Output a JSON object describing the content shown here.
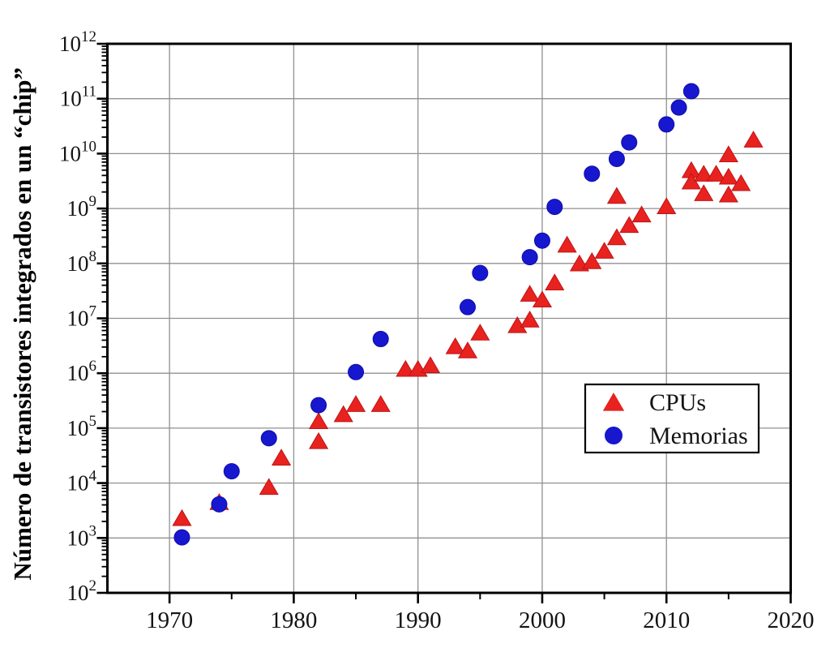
{
  "figure": {
    "kind": "scatter plot, log y-scale, Moore's law style"
  },
  "chart_data": {
    "type": "scatter",
    "title": "",
    "xlabel": "",
    "ylabel": "Número de transistores integrados en un “chip”",
    "x_axis": {
      "min": 1965,
      "max": 2020,
      "major_ticks": [
        1970,
        1980,
        1990,
        2000,
        2010,
        2020
      ],
      "minor_ticks": [
        1975,
        1985,
        1995,
        2005,
        2015
      ]
    },
    "y_axis": {
      "scale": "log",
      "min": 100,
      "max": 1000000000000,
      "tick_exponents": [
        2,
        3,
        4,
        5,
        6,
        7,
        8,
        9,
        10,
        11,
        12
      ],
      "tick_label_base": "10"
    },
    "grid": {
      "major_gridlines": true,
      "color": "#909090"
    },
    "frame_color": "#000000",
    "legend": {
      "position": "inside-right-middle",
      "entries": [
        {
          "label": "CPUs",
          "marker": "triangle",
          "color": "#e8221f"
        },
        {
          "label": "Memorias",
          "marker": "circle",
          "color": "#1717cf"
        }
      ]
    },
    "series": [
      {
        "name": "CPUs",
        "marker": "triangle",
        "color": "#e8221f",
        "edge_color": "#c01315",
        "points": [
          [
            1971,
            2300
          ],
          [
            1974,
            4500
          ],
          [
            1978,
            8500
          ],
          [
            1979,
            29000
          ],
          [
            1982,
            58000
          ],
          [
            1982,
            134000
          ],
          [
            1984,
            180000
          ],
          [
            1985,
            275000
          ],
          [
            1987,
            275000
          ],
          [
            1989,
            1200000
          ],
          [
            1990,
            1200000
          ],
          [
            1991,
            1400000
          ],
          [
            1993,
            3100000
          ],
          [
            1994,
            2600000
          ],
          [
            1995,
            5500000
          ],
          [
            1998,
            7500000
          ],
          [
            1999,
            9500000
          ],
          [
            1999,
            28000000
          ],
          [
            2000,
            22000000
          ],
          [
            2001,
            45000000
          ],
          [
            2002,
            220000000
          ],
          [
            2003,
            100000000
          ],
          [
            2004,
            110000000
          ],
          [
            2005,
            170000000
          ],
          [
            2006,
            300000000
          ],
          [
            2006,
            1700000000
          ],
          [
            2007,
            500000000
          ],
          [
            2008,
            780000000
          ],
          [
            2010,
            1100000000
          ],
          [
            2012,
            5000000000
          ],
          [
            2012,
            3100000000
          ],
          [
            2013,
            4300000000
          ],
          [
            2013,
            1900000000
          ],
          [
            2014,
            4300000000
          ],
          [
            2015,
            9700000000
          ],
          [
            2015,
            3800000000
          ],
          [
            2015,
            1800000000
          ],
          [
            2016,
            2900000000
          ],
          [
            2017,
            18000000000
          ]
        ]
      },
      {
        "name": "Memorias",
        "marker": "circle",
        "color": "#1717cf",
        "edge_color": "#0d0da8",
        "points": [
          [
            1971,
            1024
          ],
          [
            1974,
            4096
          ],
          [
            1975,
            16384
          ],
          [
            1978,
            65536
          ],
          [
            1982,
            262144
          ],
          [
            1985,
            1050000
          ],
          [
            1987,
            4200000
          ],
          [
            1994,
            16000000
          ],
          [
            1995,
            67000000
          ],
          [
            1999,
            130000000
          ],
          [
            2000,
            260000000
          ],
          [
            2001,
            1070000000
          ],
          [
            2004,
            4300000000
          ],
          [
            2006,
            8000000000
          ],
          [
            2007,
            16000000000
          ],
          [
            2010,
            34000000000
          ],
          [
            2011,
            69000000000
          ],
          [
            2012,
            137000000000
          ]
        ]
      }
    ]
  }
}
